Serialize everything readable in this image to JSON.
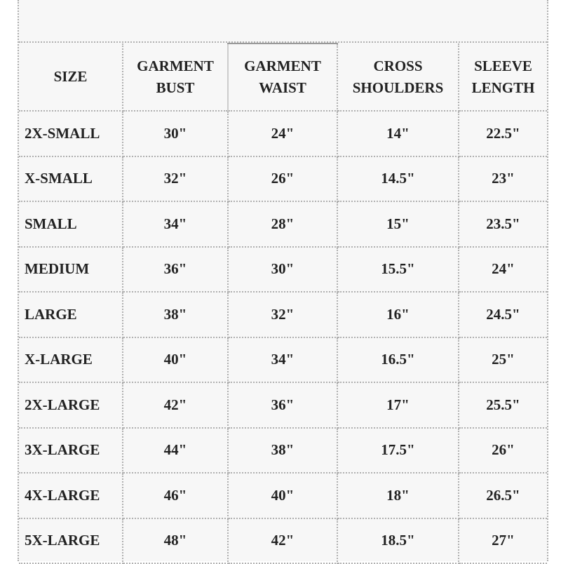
{
  "table": {
    "headers": [
      [
        "SIZE"
      ],
      [
        "GARMENT",
        "BUST"
      ],
      [
        "GARMENT",
        "WAIST"
      ],
      [
        "CROSS",
        "SHOULDERS"
      ],
      [
        "SLEEVE",
        "LENGTH"
      ]
    ],
    "rows": [
      [
        "2X-SMALL",
        "30\"",
        "24\"",
        "14\"",
        "22.5\""
      ],
      [
        "X-SMALL",
        "32\"",
        "26\"",
        "14.5\"",
        "23\""
      ],
      [
        "SMALL",
        "34\"",
        "28\"",
        "15\"",
        "23.5\""
      ],
      [
        "MEDIUM",
        "36\"",
        "30\"",
        "15.5\"",
        "24\""
      ],
      [
        "LARGE",
        "38\"",
        "32\"",
        "16\"",
        "24.5\""
      ],
      [
        "X-LARGE",
        "40\"",
        "34\"",
        "16.5\"",
        "25\""
      ],
      [
        "2X-LARGE",
        "42\"",
        "36\"",
        "17\"",
        "25.5\""
      ],
      [
        "3X-LARGE",
        "44\"",
        "38\"",
        "17.5\"",
        "26\""
      ],
      [
        "4X-LARGE",
        "46\"",
        "40\"",
        "18\"",
        "26.5\""
      ],
      [
        "5X-LARGE",
        "48\"",
        "42\"",
        "18.5\"",
        "27\""
      ]
    ]
  }
}
